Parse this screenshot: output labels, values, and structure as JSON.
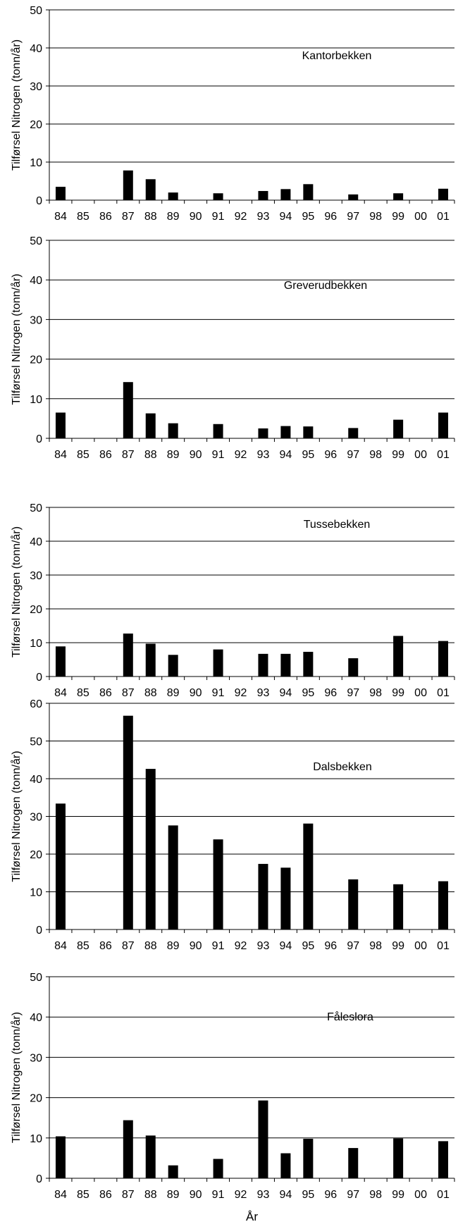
{
  "chart_data": [
    {
      "type": "bar",
      "title": "Kantorbekken",
      "ylabel": "Tilførsel Nitrogen (tonn/år)",
      "xlabel": "",
      "ylim": [
        0,
        50
      ],
      "yticks": [
        0,
        10,
        20,
        30,
        40,
        50
      ],
      "grid": true,
      "categories": [
        "84",
        "85",
        "86",
        "87",
        "88",
        "89",
        "90",
        "91",
        "92",
        "93",
        "94",
        "95",
        "96",
        "97",
        "98",
        "99",
        "00",
        "01"
      ],
      "values": [
        3.5,
        0,
        0,
        7.8,
        5.5,
        2.0,
        0,
        1.8,
        0,
        2.4,
        2.9,
        4.2,
        0,
        1.5,
        0,
        1.8,
        0,
        3.0
      ]
    },
    {
      "type": "bar",
      "title": "Greverudbekken",
      "ylabel": "Tilførsel Nitrogen (tonn/år)",
      "xlabel": "",
      "ylim": [
        0,
        50
      ],
      "yticks": [
        0,
        10,
        20,
        30,
        40,
        50
      ],
      "grid": true,
      "categories": [
        "84",
        "85",
        "86",
        "87",
        "88",
        "89",
        "90",
        "91",
        "92",
        "93",
        "94",
        "95",
        "96",
        "97",
        "98",
        "99",
        "00",
        "01"
      ],
      "values": [
        6.5,
        0,
        0,
        14.2,
        6.3,
        3.8,
        0,
        3.6,
        0,
        2.5,
        3.1,
        3.0,
        0,
        2.6,
        0,
        4.7,
        0,
        6.5
      ]
    },
    {
      "type": "bar",
      "title": "Tussebekken",
      "ylabel": "Tilførsel Nitrogen (tonn/år)",
      "xlabel": "",
      "ylim": [
        0,
        50
      ],
      "yticks": [
        0,
        10,
        20,
        30,
        40,
        50
      ],
      "grid": true,
      "categories": [
        "84",
        "85",
        "86",
        "87",
        "88",
        "89",
        "90",
        "91",
        "92",
        "93",
        "94",
        "95",
        "96",
        "97",
        "98",
        "99",
        "00",
        "01"
      ],
      "values": [
        8.9,
        0,
        0,
        12.7,
        9.7,
        6.4,
        0,
        8.0,
        0,
        6.7,
        6.7,
        7.3,
        0,
        5.4,
        0,
        12.0,
        0,
        10.5
      ]
    },
    {
      "type": "bar",
      "title": "Dalsbekken",
      "ylabel": "Tilførsel Nitrogen (tonn/år)",
      "xlabel": "",
      "ylim": [
        0,
        60
      ],
      "yticks": [
        0,
        10,
        20,
        30,
        40,
        50,
        60
      ],
      "grid": true,
      "categories": [
        "84",
        "85",
        "86",
        "87",
        "88",
        "89",
        "90",
        "91",
        "92",
        "93",
        "94",
        "95",
        "96",
        "97",
        "98",
        "99",
        "00",
        "01"
      ],
      "values": [
        33.4,
        0,
        0,
        56.7,
        42.6,
        27.6,
        0,
        23.9,
        0,
        17.4,
        16.4,
        28.1,
        0,
        13.3,
        0,
        12.0,
        0,
        12.8
      ]
    },
    {
      "type": "bar",
      "title": "Fåleslora",
      "ylabel": "Tilførsel Nitrogen (tonn/år)",
      "xlabel": "År",
      "ylim": [
        0,
        50
      ],
      "yticks": [
        0,
        10,
        20,
        30,
        40,
        50
      ],
      "grid": true,
      "categories": [
        "84",
        "85",
        "86",
        "87",
        "88",
        "89",
        "90",
        "91",
        "92",
        "93",
        "94",
        "95",
        "96",
        "97",
        "98",
        "99",
        "00",
        "01"
      ],
      "values": [
        10.4,
        0,
        0,
        14.4,
        10.6,
        3.2,
        0,
        4.8,
        0,
        19.3,
        6.2,
        9.8,
        0,
        7.5,
        0,
        9.9,
        0,
        9.2
      ]
    }
  ]
}
